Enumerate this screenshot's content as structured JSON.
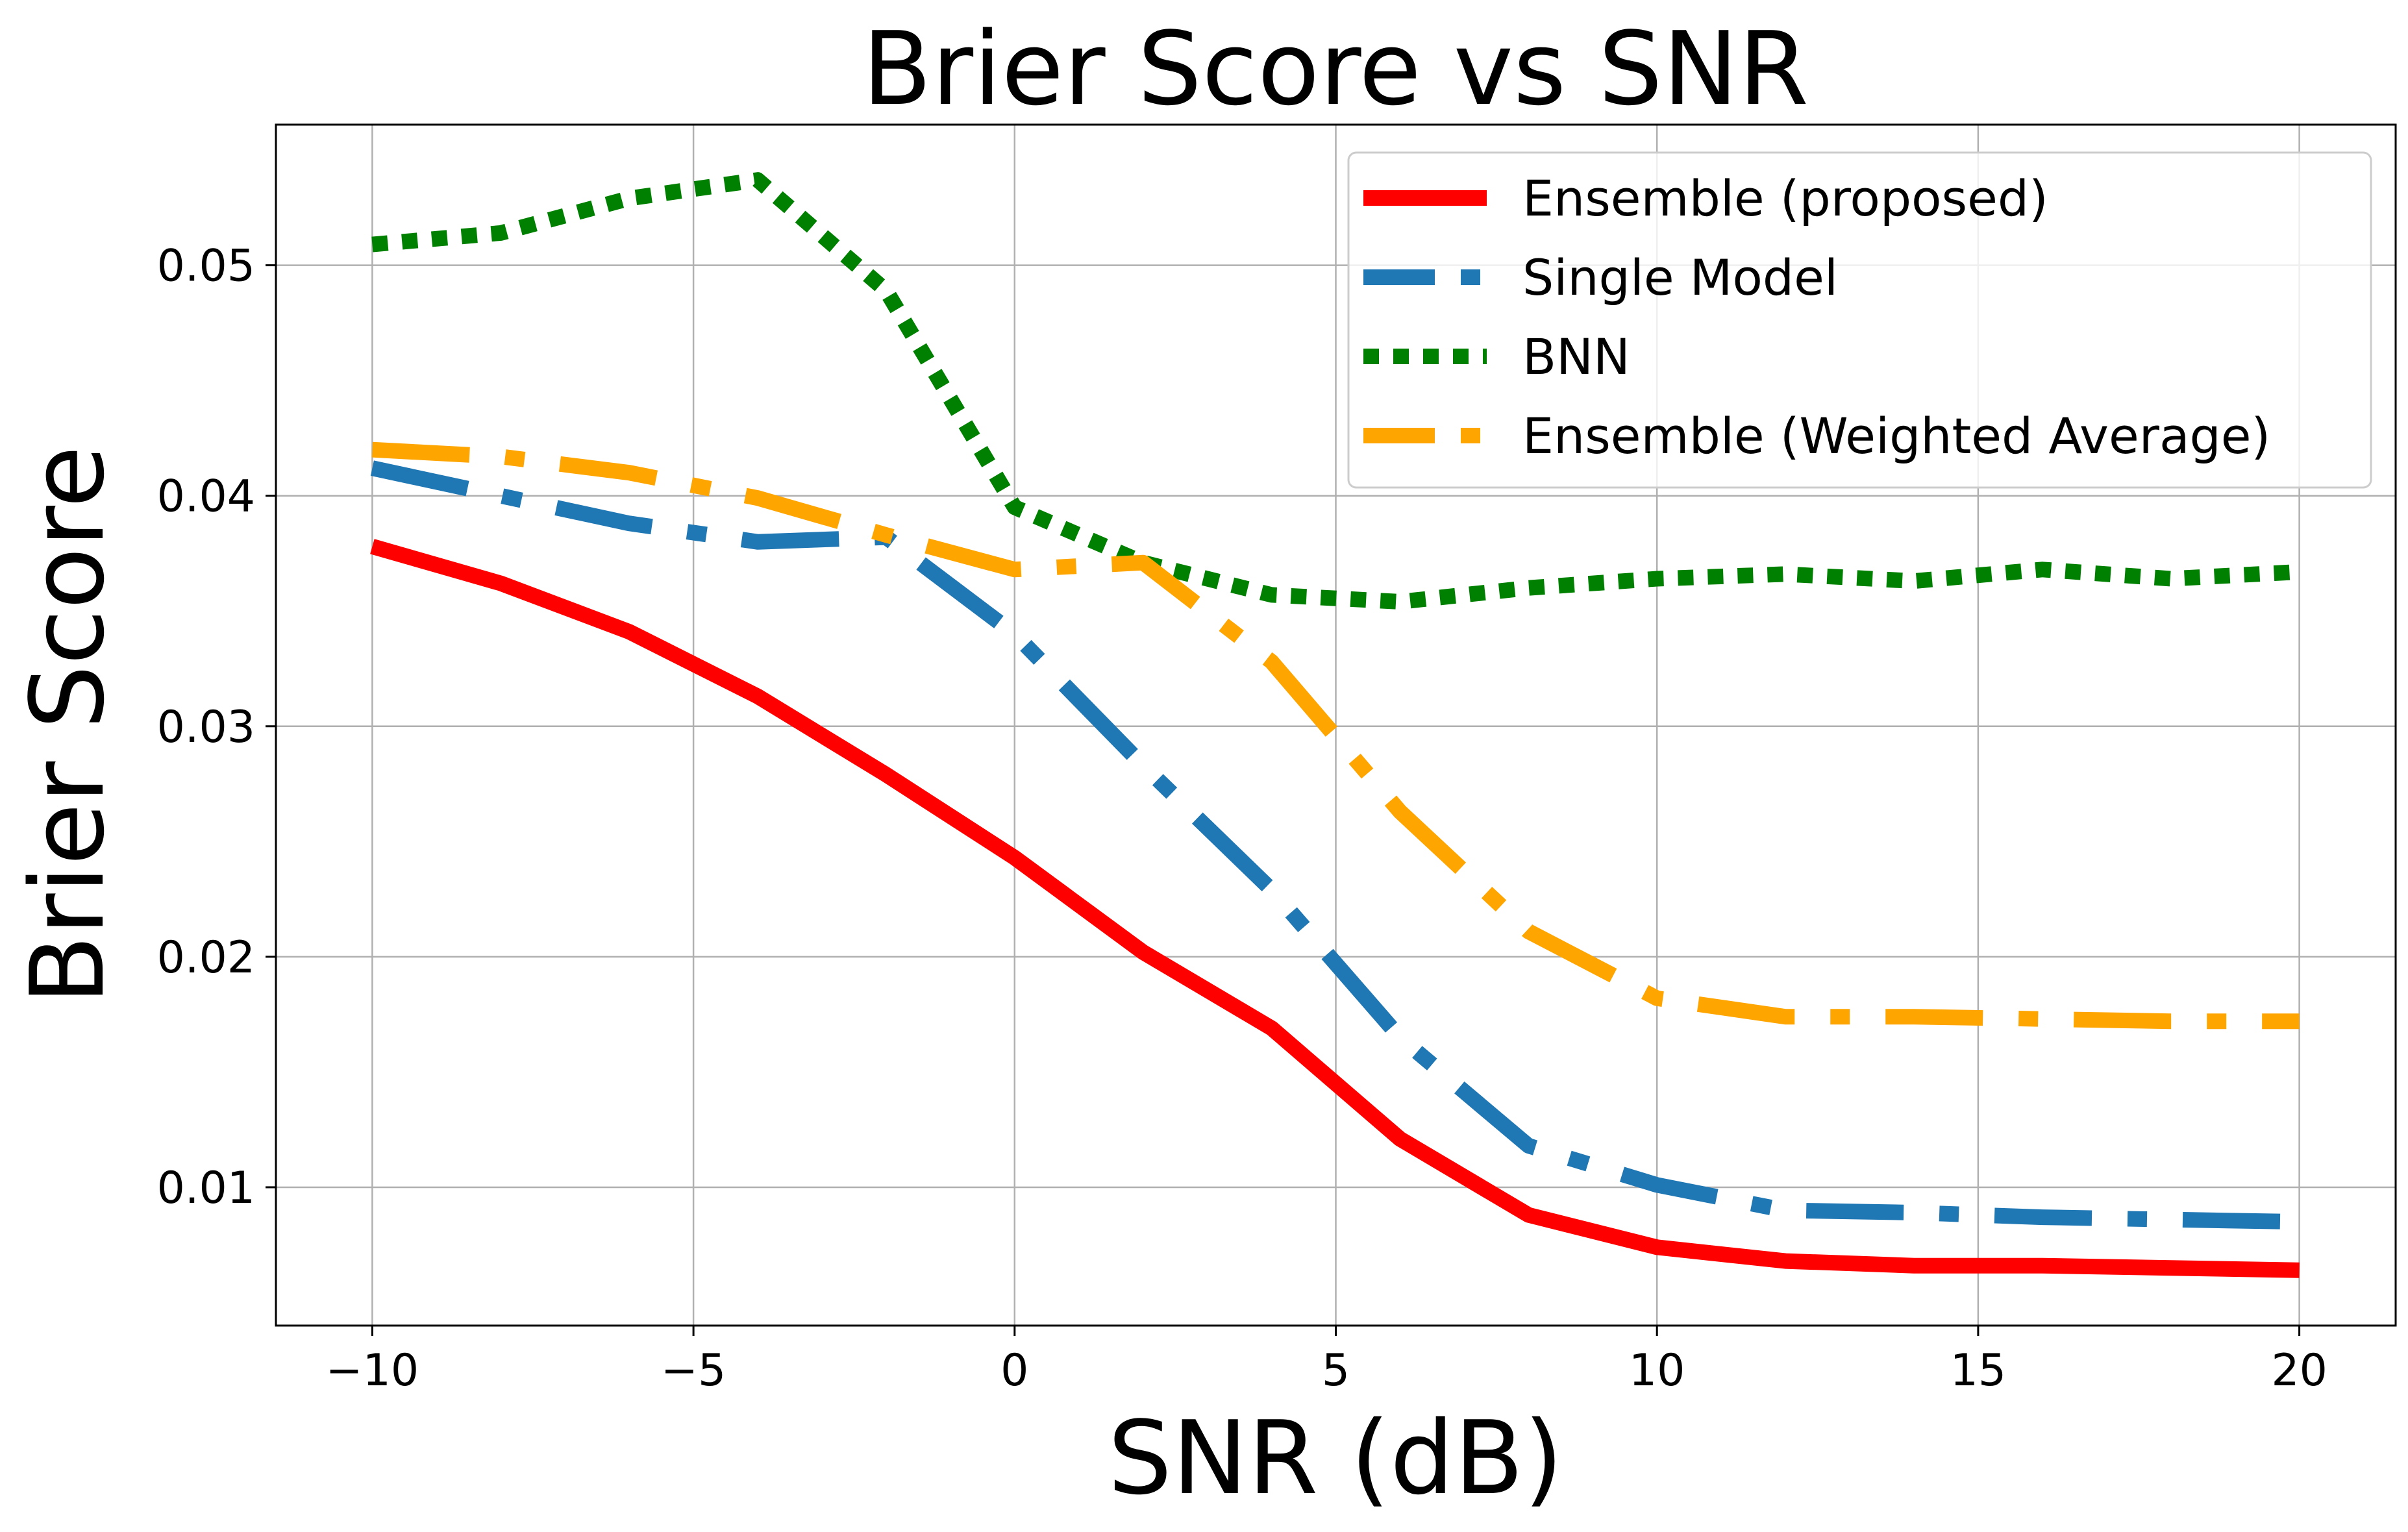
{
  "chart_data": {
    "type": "line",
    "title": "Brier Score vs SNR",
    "xlabel": "SNR (dB)",
    "ylabel": "Brier Score",
    "xlim": [
      -11.5,
      21.5
    ],
    "ylim": [
      0.004,
      0.0561
    ],
    "xticks": [
      -10,
      -5,
      0,
      5,
      10,
      15,
      20
    ],
    "xtick_labels": [
      "−10",
      "−5",
      "0",
      "5",
      "10",
      "15",
      "20"
    ],
    "yticks": [
      0.01,
      0.02,
      0.03,
      0.04,
      0.05
    ],
    "ytick_labels": [
      "0.01",
      "0.02",
      "0.03",
      "0.04",
      "0.05"
    ],
    "grid": true,
    "legend_position": "top-right",
    "x": [
      -10,
      -8,
      -6,
      -4,
      -2,
      0,
      2,
      4,
      6,
      8,
      10,
      12,
      14,
      16,
      18,
      20
    ],
    "series": [
      {
        "name": "Ensemble (proposed)",
        "color": "#ff0000",
        "style": "solid",
        "values": [
          0.0378,
          0.0362,
          0.0341,
          0.0313,
          0.0279,
          0.0243,
          0.0202,
          0.0169,
          0.0121,
          0.0088,
          0.0074,
          0.0068,
          0.0066,
          0.0066,
          0.0065,
          0.0064
        ]
      },
      {
        "name": "Single Model",
        "color": "#1f77b4",
        "style": "dashdot",
        "values": [
          0.0412,
          0.04,
          0.0388,
          0.038,
          0.0382,
          0.034,
          0.0283,
          0.0229,
          0.0165,
          0.0118,
          0.0101,
          0.009,
          0.0089,
          0.0087,
          0.0086,
          0.0085
        ]
      },
      {
        "name": "BNN",
        "color": "#008000",
        "style": "dotted",
        "values": [
          0.0509,
          0.0514,
          0.0529,
          0.0537,
          0.0489,
          0.0395,
          0.0371,
          0.0357,
          0.0354,
          0.036,
          0.0364,
          0.0366,
          0.0363,
          0.0368,
          0.0364,
          0.0367
        ]
      },
      {
        "name": "Ensemble (Weighted Average)",
        "color": "#ffa500",
        "style": "dashdot",
        "values": [
          0.042,
          0.0417,
          0.041,
          0.0399,
          0.0383,
          0.0368,
          0.0371,
          0.0328,
          0.0263,
          0.0211,
          0.0182,
          0.0174,
          0.0174,
          0.0173,
          0.0172,
          0.0172
        ]
      }
    ]
  }
}
